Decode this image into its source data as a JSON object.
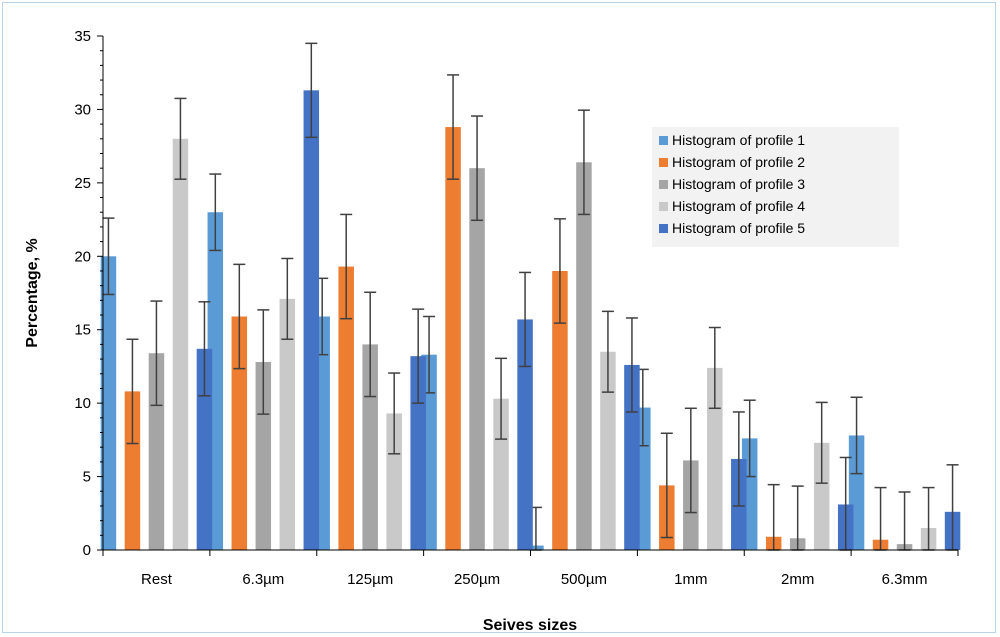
{
  "chart_data": {
    "type": "bar",
    "title": "",
    "xlabel": "Seives sizes",
    "ylabel": "Percentage, %",
    "ylim": [
      0,
      35
    ],
    "yticks": [
      0,
      5,
      10,
      15,
      20,
      25,
      30,
      35
    ],
    "grid": false,
    "legend_position": "right",
    "categories": [
      "Rest",
      "6.3µm",
      "125µm",
      "250µm",
      "500µm",
      "1mm",
      "2mm",
      "6.3mm"
    ],
    "series": [
      {
        "name": "Histogram of profile 1",
        "color": "#5b9bd5",
        "values": [
          20.0,
          23.0,
          15.9,
          13.3,
          0.3,
          9.7,
          7.6,
          7.8
        ],
        "errors": [
          2.6,
          2.6,
          2.6,
          2.6,
          2.6,
          2.6,
          2.6,
          2.6
        ]
      },
      {
        "name": "Histogram of profile 2",
        "color": "#ed7d31",
        "values": [
          10.8,
          15.9,
          19.3,
          28.8,
          19.0,
          4.4,
          0.9,
          0.7
        ],
        "errors": [
          3.55,
          3.55,
          3.55,
          3.55,
          3.55,
          3.55,
          3.55,
          3.55
        ]
      },
      {
        "name": "Histogram of profile 3",
        "color": "#a5a5a5",
        "values": [
          13.4,
          12.8,
          14.0,
          26.0,
          26.4,
          6.1,
          0.8,
          0.4
        ],
        "errors": [
          3.55,
          3.55,
          3.55,
          3.55,
          3.55,
          3.55,
          3.55,
          3.55
        ]
      },
      {
        "name": "Histogram of profile 4",
        "color": "#c9c9c9",
        "values": [
          28.0,
          17.1,
          9.3,
          10.3,
          13.5,
          12.4,
          7.3,
          1.5
        ],
        "errors": [
          2.75,
          2.75,
          2.75,
          2.75,
          2.75,
          2.75,
          2.75,
          2.75
        ]
      },
      {
        "name": "Histogram of profile 5",
        "color": "#4472c4",
        "values": [
          13.7,
          31.3,
          13.2,
          15.7,
          12.6,
          6.2,
          3.1,
          2.6
        ],
        "errors": [
          3.2,
          3.2,
          3.2,
          3.2,
          3.2,
          3.2,
          3.2,
          3.2
        ]
      }
    ]
  }
}
